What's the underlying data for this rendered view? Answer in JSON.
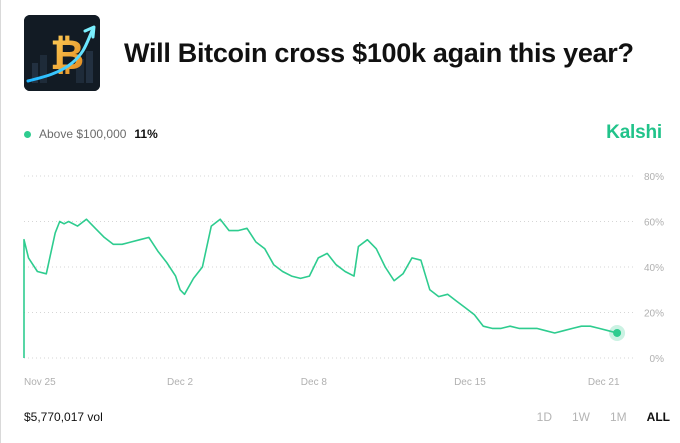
{
  "market": {
    "title": "Will Bitcoin cross $100k again this year?",
    "thumbnail_icon": "bitcoin-growth-icon"
  },
  "legend": {
    "label": "Above $100,000",
    "value": "11%"
  },
  "brand": "Kalshi",
  "colors": {
    "line": "#2ecc8f",
    "brand": "#21c38a",
    "grid": "#d6d6d6",
    "axis_text": "#b0b0b0"
  },
  "footer": {
    "volume": "$5,770,017 vol",
    "ranges": [
      {
        "label": "1D",
        "active": false
      },
      {
        "label": "1W",
        "active": false
      },
      {
        "label": "1M",
        "active": false
      },
      {
        "label": "ALL",
        "active": true
      }
    ]
  },
  "chart_data": {
    "type": "line",
    "title": "",
    "xlabel": "",
    "ylabel": "",
    "y_ticks": [
      "80%",
      "60%",
      "40%",
      "20%",
      "0%"
    ],
    "y_tick_values": [
      80,
      60,
      40,
      20,
      0
    ],
    "ylim": [
      0,
      80
    ],
    "x_ticks": [
      "Nov 25",
      "Dec 2",
      "Dec 8",
      "Dec 15",
      "Dec 21"
    ],
    "x_tick_values": [
      0,
      7,
      13,
      20,
      26
    ],
    "xlim": [
      0,
      27
    ],
    "grid": "horizontal-dotted",
    "legend_position": "top-left",
    "series": [
      {
        "name": "Above $100,000",
        "x": [
          0,
          0.2,
          0.6,
          1.0,
          1.4,
          1.6,
          1.8,
          2.0,
          2.4,
          2.8,
          3.2,
          3.6,
          4.0,
          4.4,
          4.8,
          5.2,
          5.6,
          6.0,
          6.4,
          6.8,
          7.0,
          7.2,
          7.6,
          8.0,
          8.4,
          8.8,
          9.2,
          9.6,
          10.0,
          10.4,
          10.8,
          11.2,
          11.6,
          12.0,
          12.4,
          12.8,
          13.2,
          13.6,
          14.0,
          14.4,
          14.8,
          15.0,
          15.4,
          15.8,
          16.2,
          16.6,
          17.0,
          17.4,
          17.8,
          18.2,
          18.6,
          19.0,
          19.4,
          19.8,
          20.2,
          20.6,
          21.0,
          21.4,
          21.8,
          22.2,
          22.6,
          23.0,
          23.4,
          23.8,
          24.2,
          24.6,
          25.0,
          25.4,
          25.8,
          26.2,
          26.6
        ],
        "y": [
          52,
          44,
          38,
          37,
          55,
          60,
          59,
          60,
          58,
          61,
          57,
          53,
          50,
          50,
          51,
          52,
          53,
          47,
          42,
          36,
          30,
          28,
          35,
          40,
          58,
          61,
          56,
          56,
          57,
          51,
          48,
          41,
          38,
          36,
          35,
          36,
          44,
          46,
          41,
          38,
          36,
          49,
          52,
          48,
          40,
          34,
          37,
          44,
          43,
          30,
          27,
          28,
          25,
          22,
          19,
          14,
          13,
          13,
          14,
          13,
          13,
          13,
          12,
          11,
          12,
          13,
          14,
          14,
          13,
          12,
          11
        ]
      }
    ]
  }
}
